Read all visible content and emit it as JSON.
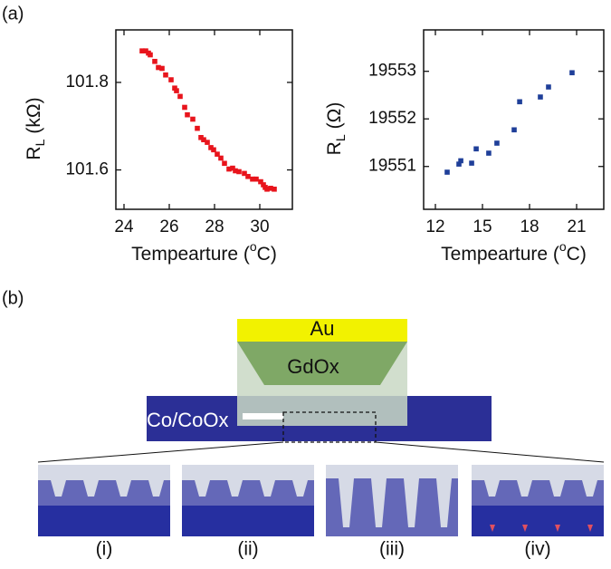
{
  "panel_labels": [
    "(a)",
    "(b)"
  ],
  "chart_data": [
    {
      "type": "scatter",
      "color": "#e8141c",
      "ylabel": {
        "symbol": "R",
        "subscript": "L",
        "unit": "(kΩ)"
      },
      "xlabel": {
        "text": "Tempearture (",
        "superscript": "o",
        "unit": "C)"
      },
      "xlim": [
        23.64,
        31.44
      ],
      "xticks": [
        24,
        26,
        28,
        30
      ],
      "ylim": [
        101.51,
        101.92
      ],
      "yticks": [
        101.6,
        101.8
      ],
      "x": [
        24.8,
        24.96,
        25.08,
        25.16,
        25.36,
        25.52,
        25.68,
        25.84,
        26.08,
        26.24,
        26.32,
        26.48,
        26.68,
        26.8,
        27.04,
        27.24,
        27.4,
        27.52,
        27.68,
        27.84,
        27.96,
        28.12,
        28.28,
        28.44,
        28.64,
        28.8,
        28.92,
        29.08,
        29.32,
        29.48,
        29.68,
        29.84,
        30.04,
        30.16,
        30.24,
        30.32,
        30.48,
        30.64
      ],
      "values": [
        101.872,
        101.872,
        101.867,
        101.863,
        101.848,
        101.834,
        101.832,
        101.817,
        101.806,
        101.787,
        101.781,
        101.768,
        101.743,
        101.726,
        101.716,
        101.695,
        101.674,
        101.669,
        101.663,
        101.651,
        101.646,
        101.636,
        101.627,
        101.615,
        101.602,
        101.604,
        101.598,
        101.596,
        101.592,
        101.585,
        101.579,
        101.579,
        101.573,
        101.566,
        101.56,
        101.556,
        101.558,
        101.556
      ]
    },
    {
      "type": "scatter",
      "color": "#1f3f99",
      "ylabel": {
        "symbol": "R",
        "subscript": "L",
        "unit": "(Ω)"
      },
      "xlabel": {
        "text": "Tempearture (",
        "superscript": "o",
        "unit": "C)"
      },
      "xlim": [
        11.25,
        22.73
      ],
      "xticks": [
        12,
        15,
        18,
        21
      ],
      "ylim": [
        19550.1,
        19553.87
      ],
      "yticks": [
        19551,
        19552,
        19553
      ],
      "x": [
        12.75,
        13.5,
        13.62,
        14.31,
        14.6,
        15.4,
        15.92,
        17.02,
        17.37,
        18.69,
        19.21,
        20.71
      ],
      "values": [
        19550.88,
        19551.05,
        19551.12,
        19551.07,
        19551.37,
        19551.28,
        19551.49,
        19551.77,
        19552.36,
        19552.46,
        19552.67,
        19552.97
      ]
    }
  ],
  "diagram": {
    "layers": [
      "Au",
      "GdOx",
      "Co/CoOx"
    ],
    "panels": [
      "(i)",
      "(ii)",
      "(iii)",
      "(iv)"
    ]
  }
}
